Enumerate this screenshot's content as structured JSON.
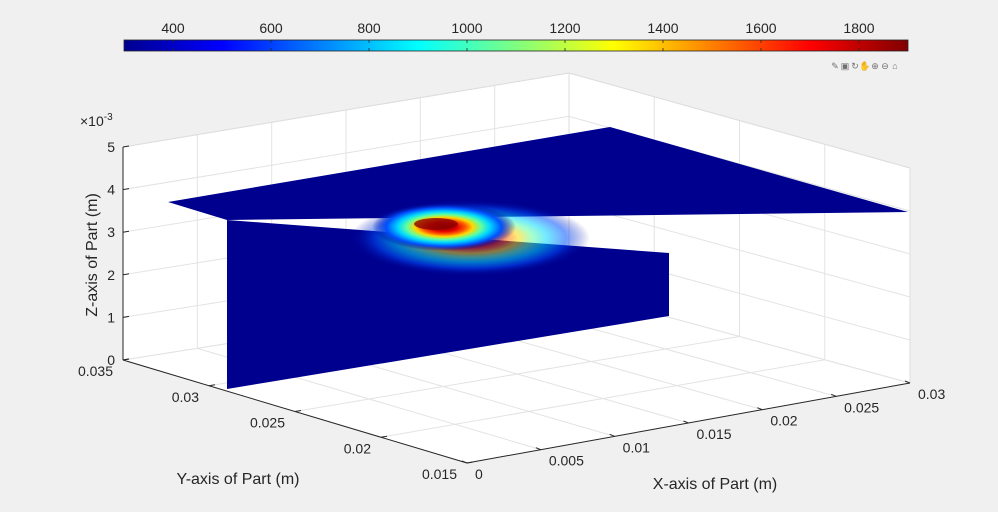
{
  "chart_data": {
    "type": "surface3d",
    "xlabel": "X-axis of Part (m)",
    "ylabel": "Y-axis of Part (m)",
    "zlabel": "Z-axis of Part (m)",
    "x_ticks": [
      "0",
      "0.005",
      "0.01",
      "0.015",
      "0.02",
      "0.025",
      "0.03"
    ],
    "y_ticks": [
      "0.015",
      "0.02",
      "0.025",
      "0.03",
      "0.035"
    ],
    "z_ticks": [
      "0",
      "1",
      "2",
      "3",
      "4",
      "5"
    ],
    "z_exponent_base": "×10",
    "z_exponent_power": "-3",
    "xlim": [
      0,
      0.03
    ],
    "ylim": [
      0.015,
      0.035
    ],
    "zlim": [
      0,
      0.005
    ],
    "grid": true,
    "colormap": "jet",
    "colorbar": {
      "location": "top",
      "limits": [
        300,
        1900
      ],
      "ticks": [
        "400",
        "600",
        "800",
        "1000",
        "1200",
        "1400",
        "1600",
        "1800"
      ]
    },
    "surfaces": [
      {
        "plane": "z",
        "z": 0.0035,
        "x": [
          0,
          0.03
        ],
        "y": [
          0.0175,
          0.035
        ],
        "base_value": 300,
        "hotspot": {
          "x": 0.0065,
          "y": 0.0265,
          "peak_value": 1850
        }
      },
      {
        "plane": "y",
        "y": 0.0175,
        "x": [
          0,
          0.03
        ],
        "z": [
          0,
          0.0035
        ],
        "value": 300
      }
    ]
  },
  "toolbar": {
    "icons": [
      "brush-icon",
      "datatip-icon",
      "rotate-icon",
      "pan-icon",
      "zoom-in-icon",
      "zoom-out-icon",
      "home-icon"
    ]
  }
}
